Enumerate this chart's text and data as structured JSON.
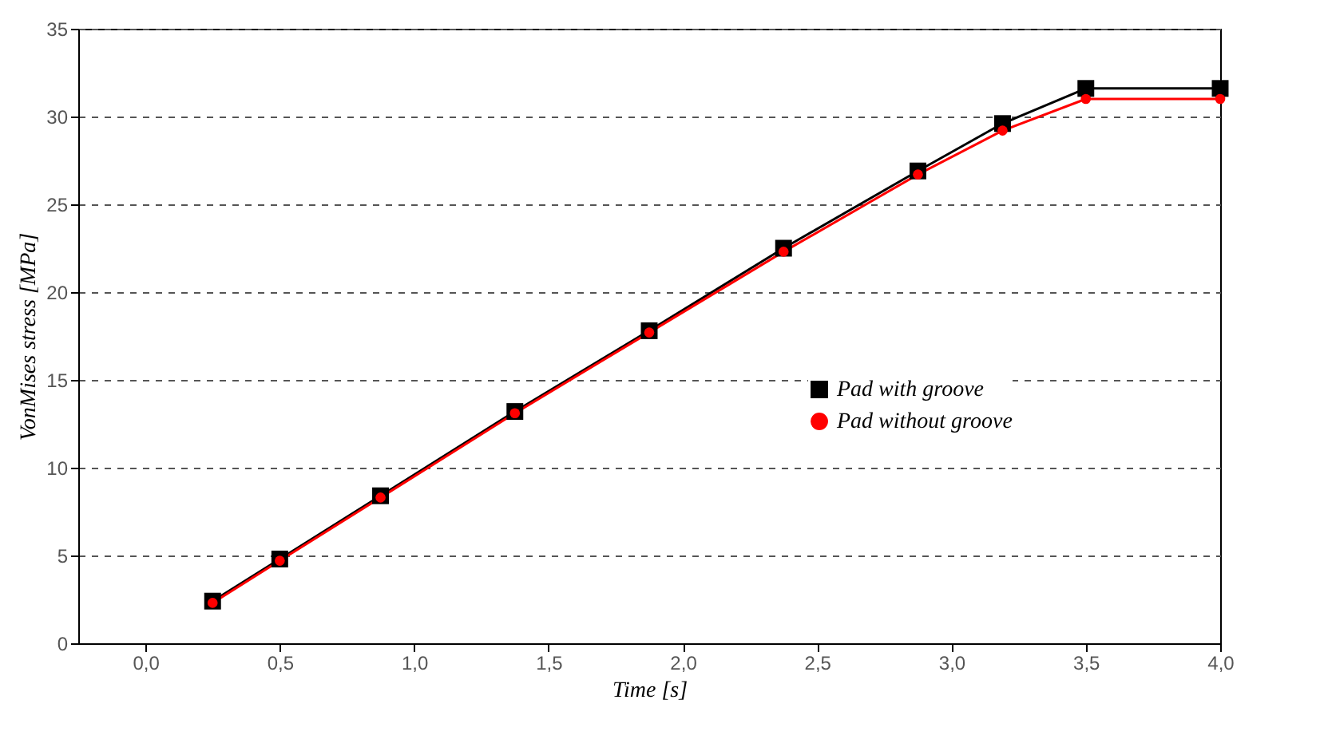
{
  "chart_data": {
    "type": "line",
    "xlabel": "Time [s]",
    "ylabel": "VonMises stress [MPa]",
    "x": [
      0.25,
      0.5,
      0.875,
      1.375,
      1.875,
      2.375,
      2.875,
      3.19,
      3.5,
      4.0
    ],
    "series": [
      {
        "name": "Pad with groove",
        "color": "#000000",
        "marker": "square",
        "values": [
          2.4,
          4.8,
          8.4,
          13.2,
          17.8,
          22.5,
          26.9,
          29.6,
          31.6,
          31.6
        ]
      },
      {
        "name": "Pad without groove",
        "color": "#ff0000",
        "marker": "circle",
        "values": [
          2.3,
          4.7,
          8.3,
          13.1,
          17.7,
          22.3,
          26.7,
          29.2,
          31.0,
          31.0
        ]
      }
    ],
    "xlim": [
      -0.25,
      4.0
    ],
    "xticks": [
      {
        "value": 0,
        "label": "0,0"
      },
      {
        "value": 0.5,
        "label": "0,5"
      },
      {
        "value": 1,
        "label": "1,0"
      },
      {
        "value": 1.5,
        "label": "1,5"
      },
      {
        "value": 2,
        "label": "2,0"
      },
      {
        "value": 2.5,
        "label": "2,5"
      },
      {
        "value": 3,
        "label": "3,0"
      },
      {
        "value": 3.5,
        "label": "3,5"
      },
      {
        "value": 4,
        "label": "4,0"
      }
    ],
    "ylim": [
      0,
      35
    ],
    "yticks": [
      0,
      5,
      10,
      15,
      20,
      25,
      30,
      35
    ],
    "grid": "y",
    "legend": "bottom right",
    "line_style": "solid"
  }
}
